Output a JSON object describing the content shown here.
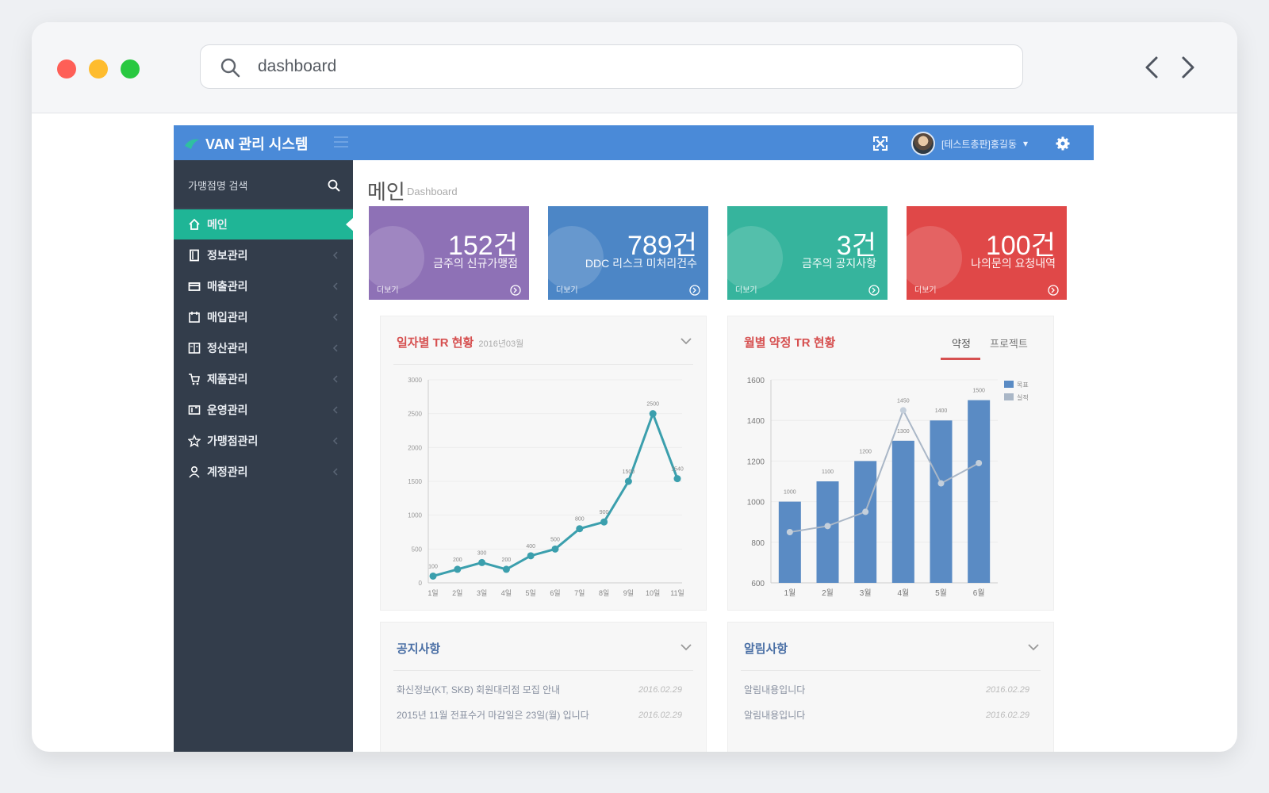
{
  "browser": {
    "url_text": "dashboard"
  },
  "app": {
    "brand": "VAN 관리 시스템",
    "user_name": "[테스트총판]홍길동",
    "search_label": "가맹점명 검색"
  },
  "sidebar": {
    "items": [
      {
        "label": "메인",
        "icon": "home-icon",
        "active": true
      },
      {
        "label": "정보관리",
        "icon": "document-icon"
      },
      {
        "label": "매출관리",
        "icon": "card-icon"
      },
      {
        "label": "매입관리",
        "icon": "calendar-icon"
      },
      {
        "label": "정산관리",
        "icon": "ledger-icon"
      },
      {
        "label": "제품관리",
        "icon": "cart-icon"
      },
      {
        "label": "운영관리",
        "icon": "tools-icon"
      },
      {
        "label": "가맹점관리",
        "icon": "star-icon"
      },
      {
        "label": "계정관리",
        "icon": "user-icon"
      }
    ]
  },
  "page": {
    "title": "메인",
    "subtitle": "Dashboard"
  },
  "stats": [
    {
      "value": "152건",
      "label": "금주의 신규가맹점",
      "more": "더보기",
      "color": "#8e71b6"
    },
    {
      "value": "789건",
      "label": "DDC 리스크 미처리건수",
      "more": "더보기",
      "color": "#4c86c6"
    },
    {
      "value": "3건",
      "label": "금주의 공지사항",
      "more": "더보기",
      "color": "#36b49d"
    },
    {
      "value": "100건",
      "label": "나의문의 요청내역",
      "more": "더보기",
      "color": "#e04848"
    }
  ],
  "line_panel": {
    "title": "일자별 TR 현황",
    "subtitle": "2016년03월"
  },
  "bar_panel": {
    "title": "월별 약정 TR 현황",
    "tabs": [
      "약정",
      "프로젝트"
    ]
  },
  "notice_panel": {
    "title": "공지사항",
    "rows": [
      {
        "text": "화신정보(KT, SKB) 회원대리점 모집 안내",
        "date": "2016.02.29"
      },
      {
        "text": "2015년 11월 전표수거 마감일은 23일(월) 입니다",
        "date": "2016.02.29"
      }
    ]
  },
  "alarm_panel": {
    "title": "알림사항",
    "rows": [
      {
        "text": "알림내용입니다",
        "date": "2016.02.29"
      },
      {
        "text": "알림내용입니다",
        "date": "2016.02.29"
      }
    ]
  },
  "chart_data": [
    {
      "type": "line",
      "title": "일자별 TR 현황",
      "categories": [
        "1일",
        "2일",
        "3일",
        "4일",
        "5일",
        "6일",
        "7일",
        "8일",
        "9일",
        "10일",
        "11일"
      ],
      "values": [
        100,
        200,
        300,
        200,
        400,
        500,
        800,
        900,
        1500,
        2500,
        1540
      ],
      "ylim": [
        0,
        3000
      ],
      "yticks": [
        0,
        500,
        1000,
        1500,
        2000,
        2500,
        3000
      ],
      "color": "#3b9fad"
    },
    {
      "type": "bar",
      "title": "월별 약정 TR 현황",
      "categories": [
        "1월",
        "2월",
        "3월",
        "4월",
        "5월",
        "6월"
      ],
      "series": [
        {
          "name": "목표",
          "type": "bar",
          "values": [
            1000,
            1100,
            1200,
            1300,
            1400,
            1500
          ],
          "color": "#5a8bc4"
        },
        {
          "name": "실적",
          "type": "line",
          "values": [
            850,
            880,
            950,
            1450,
            1090,
            1190
          ],
          "color": "#aab7c7"
        }
      ],
      "ylim": [
        600,
        1600
      ],
      "yticks": [
        600,
        800,
        1000,
        1200,
        1400,
        1600
      ],
      "bar_labels": [
        "1000",
        "1100",
        "1200",
        "1300",
        "1400",
        "1500"
      ],
      "line_labels": [
        "",
        "",
        "",
        "1450",
        "",
        ""
      ]
    }
  ]
}
